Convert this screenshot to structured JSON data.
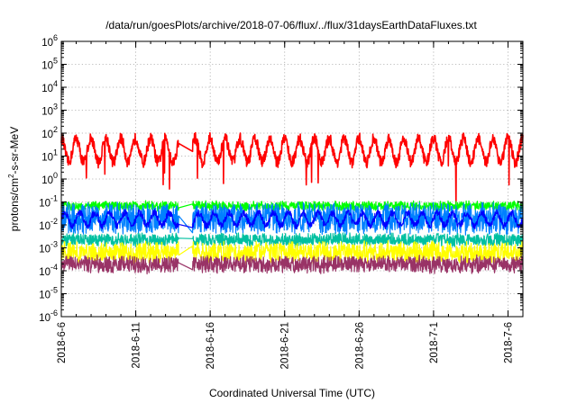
{
  "chart_data": {
    "type": "line",
    "title": "/data/run/goesPlots/archive/2018-07-06/flux/../flux/31daysEarthDataFluxes.txt",
    "xlabel": "Coordinated Universal Time (UTC)",
    "ylabel": "protons/cm2-s-sr-MeV",
    "ylabel_parts": {
      "base": "protons/cm",
      "sup": "2",
      "rest": "-s-sr-MeV"
    },
    "yscale": "log",
    "ylim_exponent": [
      -6,
      6
    ],
    "ytick_labels": [
      {
        "base": "10",
        "exp": "-6"
      },
      {
        "base": "10",
        "exp": "-5"
      },
      {
        "base": "10",
        "exp": "-4"
      },
      {
        "base": "10",
        "exp": "-3"
      },
      {
        "base": "10",
        "exp": "-2"
      },
      {
        "base": "10",
        "exp": "-1"
      },
      {
        "base": "10",
        "exp": "0"
      },
      {
        "base": "10",
        "exp": "1"
      },
      {
        "base": "10",
        "exp": "2"
      },
      {
        "base": "10",
        "exp": "3"
      },
      {
        "base": "10",
        "exp": "4"
      },
      {
        "base": "10",
        "exp": "5"
      },
      {
        "base": "10",
        "exp": "6"
      }
    ],
    "xlim": [
      "2018-06-06",
      "2018-07-07"
    ],
    "xtick_labels": [
      "2018-6-6",
      "2018-6-11",
      "2018-6-16",
      "2018-6-21",
      "2018-6-26",
      "2018-7-1",
      "2018-7-6"
    ],
    "xtick_days": [
      0,
      5,
      10,
      15,
      20,
      25,
      30
    ],
    "grid": true,
    "legend": "none",
    "data_gap_days": [
      7.9,
      8.8
    ],
    "series": [
      {
        "color": "#ff0000",
        "level_log10": [
          0.6,
          1.9
        ],
        "noise_log10": 0.25,
        "period_days": 1,
        "phase": 0.25
      },
      {
        "color": "#00ff00",
        "level_log10": [
          -1.35,
          -1.0
        ],
        "noise_log10": 0.12
      },
      {
        "color": "#0080ff",
        "level_log10": [
          -2.35,
          -1.1
        ],
        "noise_log10": 0.2
      },
      {
        "color": "#0000ff",
        "level_log10": [
          -2.1,
          -1.4
        ],
        "noise_log10": 0.15,
        "period_days": 1
      },
      {
        "color": "#00c0a0",
        "level_log10": [
          -2.9,
          -2.4
        ],
        "noise_log10": 0.12
      },
      {
        "color": "#ffff00",
        "level_log10": [
          -3.6,
          -2.8
        ],
        "noise_log10": 0.25
      },
      {
        "color": "#993366",
        "level_log10": [
          -4.05,
          -3.4
        ],
        "noise_log10": 0.2
      }
    ]
  }
}
